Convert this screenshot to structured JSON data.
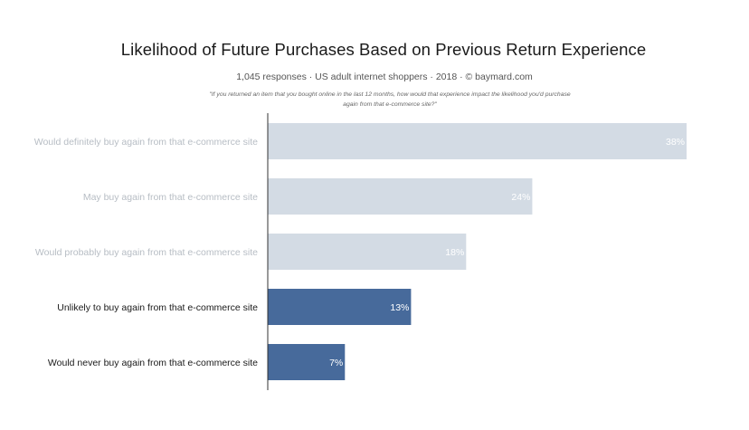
{
  "header": {
    "title": "Likelihood of Future Purchases Based on Previous Return Experience",
    "subtitle": "1,045 responses  ·  US adult internet shoppers ·  2018  ·  ©  baymard.com",
    "question": "\"If you returned an item that you bought online in the last 12 months, how would that experience impact the likelihood you'd purchase again from that e-commerce site?\""
  },
  "colors": {
    "positive_bar": "#d3dbe4",
    "negative_bar": "#476a9b",
    "positive_label": "#b7bdc4",
    "negative_label": "#1a1a1a",
    "value_text": "#ffffff",
    "axis": "#333333"
  },
  "chart_data": {
    "type": "bar",
    "orientation": "horizontal",
    "title": "Likelihood of Future Purchases Based on Previous Return Experience",
    "categories": [
      "Would definitely buy again from that e-commerce site",
      "May buy again from that e-commerce site",
      "Would probably buy again from that e-commerce site",
      "Unlikely to buy again from that e-commerce site",
      "Would never buy again from that e-commerce site"
    ],
    "values": [
      38,
      24,
      18,
      13,
      7
    ],
    "value_labels": [
      "38%",
      "24%",
      "18%",
      "13%",
      "7%"
    ],
    "highlight": [
      false,
      false,
      false,
      true,
      true
    ],
    "xlim": [
      0,
      38
    ],
    "grid": false,
    "legend": "none"
  }
}
